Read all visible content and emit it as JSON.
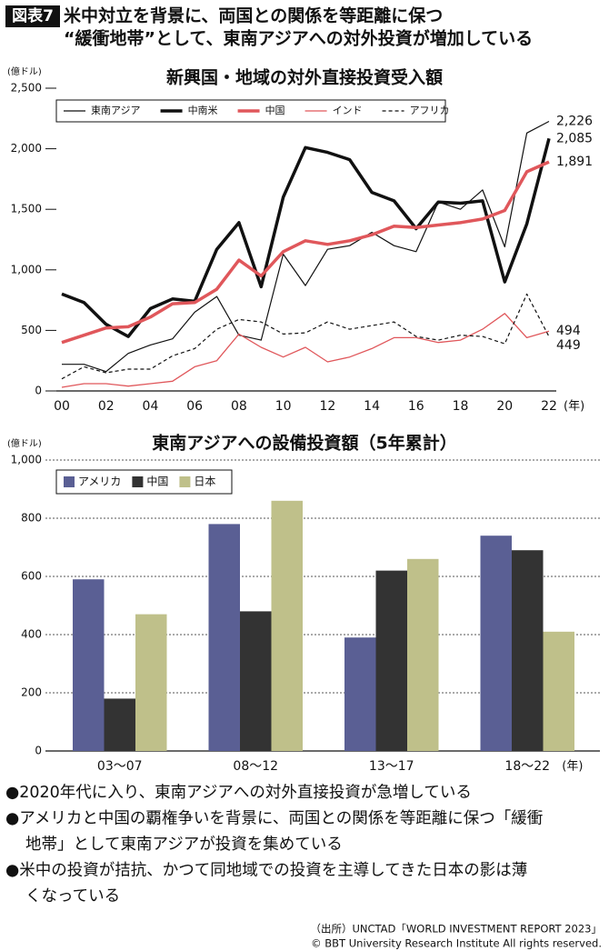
{
  "header": {
    "label": "図表7",
    "title_lines": [
      "米中対立を背景に、両国との関係を等距離に保つ",
      "“緩衝地帯”として、東南アジアへの対外投資が増加している"
    ]
  },
  "chart_data": [
    {
      "type": "line",
      "title": "新興国・地域の対外直接投資受入額",
      "y_label": "(億ドル)",
      "x_label": "(年)",
      "categories": [
        "00",
        null,
        "02",
        null,
        "04",
        null,
        "06",
        null,
        "08",
        null,
        "10",
        null,
        "12",
        null,
        "14",
        null,
        "16",
        null,
        "18",
        null,
        "20",
        null,
        "22"
      ],
      "ylim": [
        0,
        2500
      ],
      "yticks": [
        0,
        500,
        {
          "value": 1000,
          "label": "1,000"
        },
        {
          "value": 1500,
          "label": "1,500"
        },
        {
          "value": 2000,
          "label": "2,000"
        },
        {
          "value": 2500,
          "label": "2,500"
        }
      ],
      "grid": false,
      "legend": "top",
      "series": [
        {
          "name": "東南アジア",
          "color": "#111111",
          "line_width": 1.2,
          "dash": false,
          "values": [
            220,
            220,
            160,
            310,
            380,
            430,
            650,
            780,
            460,
            420,
            1130,
            870,
            1170,
            1200,
            1310,
            1200,
            1150,
            1560,
            1500,
            1660,
            1190,
            2130,
            2226
          ],
          "value_labels": [
            null,
            null,
            null,
            null,
            null,
            null,
            null,
            null,
            null,
            null,
            null,
            null,
            null,
            null,
            null,
            null,
            null,
            null,
            null,
            null,
            null,
            null,
            "2,226"
          ]
        },
        {
          "name": "中南米",
          "color": "#111111",
          "line_width": 3.5,
          "dash": false,
          "values": [
            800,
            730,
            550,
            450,
            680,
            760,
            740,
            1170,
            1390,
            860,
            1600,
            2010,
            1970,
            1910,
            1640,
            1570,
            1340,
            1560,
            1550,
            1570,
            900,
            1380,
            2085
          ],
          "value_labels": [
            null,
            null,
            null,
            null,
            null,
            null,
            null,
            null,
            null,
            null,
            null,
            null,
            null,
            null,
            null,
            null,
            null,
            null,
            null,
            null,
            null,
            null,
            "2,085"
          ]
        },
        {
          "name": "中国",
          "color": "#e0575b",
          "line_width": 3.5,
          "dash": false,
          "values": [
            400,
            460,
            520,
            530,
            610,
            720,
            730,
            840,
            1080,
            950,
            1150,
            1240,
            1210,
            1240,
            1290,
            1360,
            1350,
            1370,
            1390,
            1420,
            1490,
            1810,
            1891
          ],
          "value_labels": [
            null,
            null,
            null,
            null,
            null,
            null,
            null,
            null,
            null,
            null,
            null,
            null,
            null,
            null,
            null,
            null,
            null,
            null,
            null,
            null,
            null,
            null,
            "1,891"
          ]
        },
        {
          "name": "インド",
          "color": "#e0575b",
          "line_width": 1.3,
          "dash": false,
          "values": [
            30,
            60,
            60,
            40,
            60,
            80,
            200,
            250,
            470,
            360,
            280,
            360,
            240,
            280,
            350,
            440,
            440,
            400,
            420,
            510,
            640,
            440,
            494
          ],
          "value_labels": [
            null,
            null,
            null,
            null,
            null,
            null,
            null,
            null,
            null,
            null,
            null,
            null,
            null,
            null,
            null,
            null,
            null,
            null,
            null,
            null,
            null,
            null,
            "494"
          ]
        },
        {
          "name": "アフリカ",
          "color": "#111111",
          "line_width": 1.2,
          "dash": true,
          "values": [
            100,
            200,
            150,
            180,
            180,
            290,
            350,
            510,
            590,
            570,
            470,
            480,
            570,
            510,
            540,
            570,
            450,
            420,
            460,
            450,
            390,
            800,
            449
          ],
          "value_labels": [
            null,
            null,
            null,
            null,
            null,
            null,
            null,
            null,
            null,
            null,
            null,
            null,
            null,
            null,
            null,
            null,
            null,
            null,
            null,
            null,
            null,
            null,
            "449"
          ]
        }
      ]
    },
    {
      "type": "bar",
      "title": "東南アジアへの設備投資額（5年累計）",
      "y_label": "(億ドル)",
      "x_label": "(年)",
      "categories": [
        "03～07",
        "08～12",
        "13～17",
        "18～22"
      ],
      "ylim": [
        0,
        1000
      ],
      "yticks": [
        0,
        200,
        400,
        600,
        800,
        {
          "value": 1000,
          "label": "1,000"
        }
      ],
      "grid": true,
      "legend": "top-left",
      "series": [
        {
          "name": "アメリカ",
          "color": "#5a5f94",
          "values": [
            590,
            780,
            390,
            740
          ]
        },
        {
          "name": "中国",
          "color": "#333333",
          "values": [
            180,
            480,
            620,
            690
          ]
        },
        {
          "name": "日本",
          "color": "#bfc08a",
          "values": [
            470,
            860,
            660,
            410
          ]
        }
      ]
    }
  ],
  "notes": [
    [
      "●2020年代に入り、東南アジアへの対外直接投資が急増している"
    ],
    [
      "●アメリカと中国の覇権争いを背景に、両国との関係を等距離に保つ「緩衝",
      "地帯」として東南アジアが投資を集めている"
    ],
    [
      "●米中の投資が拮抗、かつて同地域での投資を主導してきた日本の影は薄",
      "くなっている"
    ]
  ],
  "source": [
    "（出所）UNCTAD「WORLD INVESTMENT REPORT 2023」",
    "© BBT University Research Institute All rights reserved."
  ]
}
